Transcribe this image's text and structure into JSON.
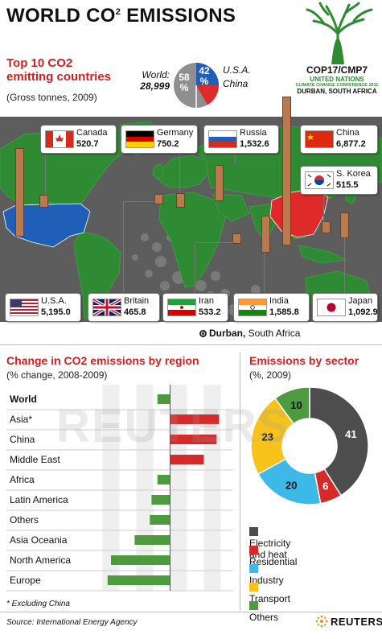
{
  "header": {
    "title": "WORLD CO",
    "title_sup": "2",
    "title_tail": " EMISSIONS",
    "subtitle_line1": "Top 10 CO2",
    "subtitle_line2": "emitting countries",
    "units": "(Gross tonnes, 2009)"
  },
  "world_share": {
    "label_world": "World:",
    "world_total": "28,999",
    "others_pct": "58",
    "others_unit": "%",
    "usa_china_pct": "42",
    "usa_china_unit": "%",
    "label_usa": "U.S.A.",
    "label_china": "China",
    "colors": {
      "others": "#8f8f8f",
      "usa": "#1f5fb8",
      "china": "#e02a2a"
    }
  },
  "conference": {
    "logo_text": "COP17/CMP7",
    "org": "UNITED NATIONS",
    "event": "CLIMATE CHANGE CONFERENCE 2011",
    "location": "DURBAN, SOUTH AFRICA"
  },
  "map": {
    "durban_label": "Durban,",
    "durban_country": " South Africa",
    "countries": [
      {
        "name": "Canada",
        "value": "520.7",
        "flag": "canada-flag"
      },
      {
        "name": "Germany",
        "value": "750.2",
        "flag": "germany-flag"
      },
      {
        "name": "Russia",
        "value": "1,532.6",
        "flag": "russia-flag"
      },
      {
        "name": "China",
        "value": "6,877.2",
        "flag": "china-flag"
      },
      {
        "name": "S. Korea",
        "value": "515.5",
        "flag": "south-korea-flag"
      },
      {
        "name": "U.S.A.",
        "value": "5,195.0",
        "flag": "usa-flag"
      },
      {
        "name": "Britain",
        "value": "465.8",
        "flag": "britain-flag"
      },
      {
        "name": "Iran",
        "value": "533.2",
        "flag": "iran-flag"
      },
      {
        "name": "India",
        "value": "1,585.8",
        "flag": "india-flag"
      },
      {
        "name": "Japan",
        "value": "1,092.9",
        "flag": "japan-flag"
      }
    ]
  },
  "chart_data": [
    {
      "type": "bar",
      "orientation": "horizontal",
      "title": "Change in CO2 emissions by region",
      "subtitle": "(% change, 2008-2009)",
      "categories": [
        "World",
        "Asia*",
        "China",
        "Middle East",
        "Africa",
        "Latin America",
        "Others",
        "Asia Oceania",
        "North America",
        "Europe"
      ],
      "values": [
        -1.5,
        5.8,
        5.5,
        4,
        -1.5,
        -2.2,
        -2.4,
        -4.2,
        -7,
        -7.4
      ],
      "xlim": [
        -9,
        7
      ],
      "ticks": [
        "-8",
        "-6",
        "-4",
        "-2",
        "%",
        "2",
        "4",
        "6"
      ],
      "tick_values": [
        -8,
        -6,
        -4,
        -2,
        0,
        2,
        4,
        6
      ],
      "note": "* Excluding China",
      "colors": {
        "positive": "#d42a2a",
        "negative": "#4e9a3e"
      }
    },
    {
      "type": "pie",
      "title": "Emissions by sector",
      "subtitle": "(%, 2009)",
      "labels": [
        "Electricity and heat",
        "Residential",
        "Industry",
        "Transport",
        "Others"
      ],
      "values": [
        41,
        6,
        20,
        23,
        10
      ],
      "colors": [
        "#4d4d4d",
        "#d42a2a",
        "#3cb9e6",
        "#f6c21b",
        "#4e9a3e"
      ]
    }
  ],
  "footer": {
    "source": "Source: International Energy Agency",
    "brand": "REUTERS",
    "watermark": "REUTERS"
  }
}
